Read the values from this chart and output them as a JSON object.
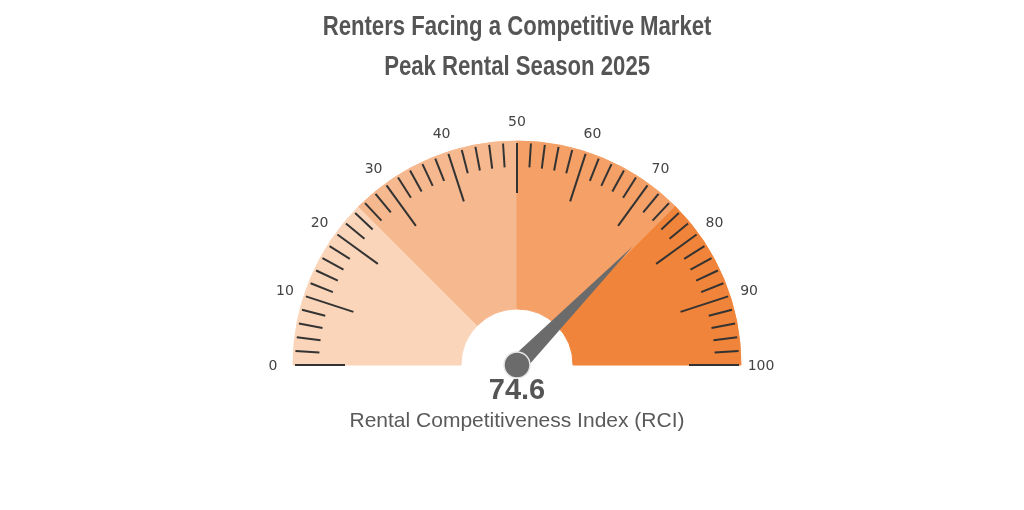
{
  "chart_data": {
    "type": "donut",
    "title": "Renters Facing a Competitive Market",
    "subtitle": "Peak Rental Season 2025",
    "xlabel": "Rental Competitiveness Index (RCI)",
    "categories": [
      null,
      null,
      null,
      null
    ],
    "values": [
      25,
      25,
      25,
      25
    ],
    "colors": [
      "#fbd5b9",
      "#f6b88e",
      "#f4a067",
      "#f0843a"
    ],
    "needle": null,
    "annotations": [
      "0",
      "10",
      "20",
      "30",
      "40",
      "50",
      "60",
      "70",
      "80",
      "90",
      "100",
      "74.6"
    ]
  }
}
